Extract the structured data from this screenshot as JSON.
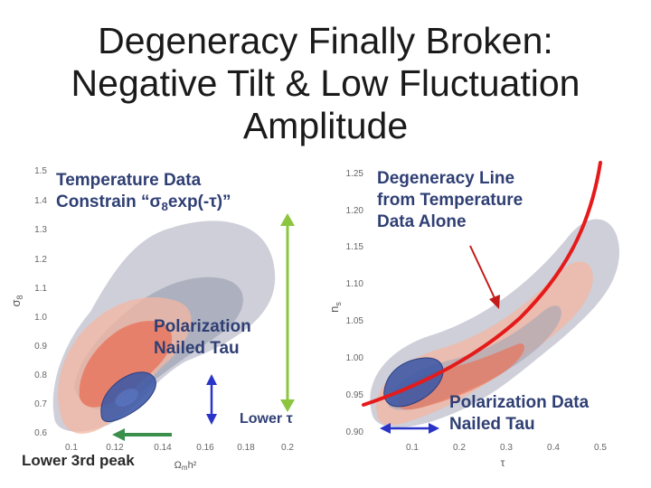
{
  "slide": {
    "title_lines": [
      "Degeneracy Finally Broken:",
      "Negative Tilt & Low Fluctuation",
      "Amplitude"
    ],
    "annotations": {
      "temperature_line1": "Temperature Data",
      "temperature_line2_prefix": "Constrain “",
      "temperature_sigma": "σ",
      "temperature_sub": "8",
      "temperature_line2_suffix": "exp(-τ)”",
      "polarization_left_line1": "Polarization",
      "polarization_left_line2": "Nailed Tau",
      "lower_tau": "Lower τ",
      "lower_peak": "Lower 3rd peak",
      "degeneracy_line1": "Degeneracy Line",
      "degeneracy_line2": "from Temperature",
      "degeneracy_line3": "Data Alone",
      "polarization_right_line1": "Polarization Data",
      "polarization_right_line2": "Nailed Tau"
    },
    "colors": {
      "title": "#1a1a1a",
      "annotation_text": "#2f3f74",
      "grey_contour_outer": "#c5c7d2",
      "grey_contour_inner": "#a2a5b6",
      "orange_outer": "#f3b7a2",
      "orange_inner": "#e8735a",
      "blue_core": "#3f5aa6",
      "green_arrow": "#8cc63f",
      "blue_arrow": "#2a35c8",
      "red_line": "#e51a1a",
      "red_pointer": "#c41a1a",
      "darkgreen_arrow": "#3a8f4b"
    }
  },
  "chart_data": [
    {
      "type": "contour",
      "xlabel": "Ωmh²",
      "ylabel": "σ8",
      "x_ticks": [
        "0.1",
        "0.12",
        "0.14",
        "0.16",
        "0.18",
        "0.2"
      ],
      "y_ticks": [
        "0.6",
        "0.7",
        "0.8",
        "0.9",
        "1.0",
        "1.1",
        "1.2",
        "1.3",
        "1.4",
        "1.5"
      ],
      "xlim": [
        0.09,
        0.21
      ],
      "ylim": [
        0.56,
        1.52
      ]
    },
    {
      "type": "contour",
      "xlabel": "τ",
      "ylabel": "ns",
      "x_ticks": [
        "0.1",
        "0.2",
        "0.3",
        "0.4",
        "0.5"
      ],
      "y_ticks": [
        "0.90",
        "0.95",
        "1.00",
        "1.05",
        "1.10",
        "1.15",
        "1.20",
        "1.25"
      ],
      "xlim": [
        0.0,
        0.55
      ],
      "ylim": [
        0.88,
        1.27
      ]
    }
  ]
}
